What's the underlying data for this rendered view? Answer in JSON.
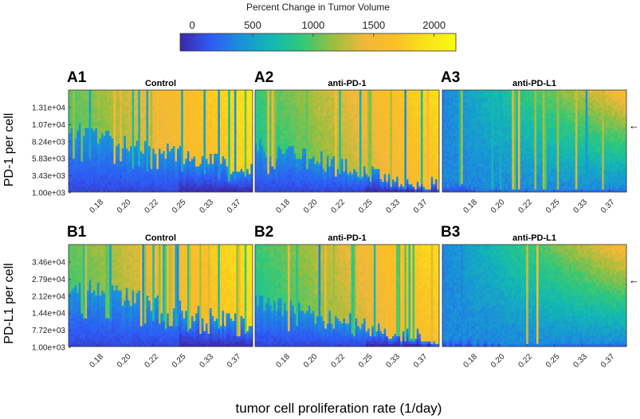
{
  "colorbar": {
    "title": "Percent Change in Tumor Volume",
    "ticks": [
      "0",
      "500",
      "1000",
      "1500",
      "2000"
    ],
    "tick_values": [
      0,
      500,
      1000,
      1500,
      2000
    ],
    "range": [
      -100,
      2180
    ],
    "colormap": "parula",
    "colormap_stops": [
      "#3e26a8",
      "#2e5cf6",
      "#1a92d9",
      "#13b9b1",
      "#32c878",
      "#9bbe3f",
      "#f0b83a",
      "#fbbf25",
      "#f9e218",
      "#f9fb0e"
    ]
  },
  "x_label": "tumor cell proliferation rate (1/day)",
  "rows": [
    {
      "y_label": "PD-1 per cell",
      "y_ticks": [
        "1.31e+04",
        "1.07e+04",
        "8.24e+03",
        "5.83e+03",
        "3.43e+03",
        "1.00e+03"
      ],
      "y_range": [
        1000,
        15000
      ]
    },
    {
      "y_label": "PD-L1 per cell",
      "y_ticks": [
        "3.46e+04",
        "2.79e+04",
        "2.12e+04",
        "1.44e+04",
        "7.72e+03",
        "1.00e+03"
      ],
      "y_range": [
        1000,
        42000
      ]
    }
  ],
  "x_ticks": [
    "0.18",
    "0.20",
    "0.22",
    "0.25",
    "0.33",
    "0.37"
  ],
  "arrow_glyph": "←",
  "chart_data": [
    {
      "type": "heatmap",
      "panel": "A1",
      "title": "Control",
      "ylabel": "PD-1 per cell",
      "xlabel": "tumor cell proliferation rate (1/day)",
      "row": 0,
      "boundary": 0.62,
      "base_high": 960,
      "extra_high": 0.2,
      "base_low": 60,
      "strip_prob": 0.55,
      "yticks": [
        "1.31e+04",
        "1.07e+04",
        "8.24e+03",
        "5.83e+03",
        "3.43e+03",
        "1.00e+03"
      ],
      "xticks": [
        "0.18",
        "0.20",
        "0.22",
        "0.25",
        "0.33",
        "0.37"
      ]
    },
    {
      "type": "heatmap",
      "panel": "A2",
      "title": "anti-PD-1",
      "ylabel": "PD-1 per cell",
      "xlabel": "tumor cell proliferation rate (1/day)",
      "row": 0,
      "boundary": 0.45,
      "base_high": 800,
      "extra_high": 0.3,
      "base_low": 60,
      "strip_prob": 0.5,
      "yticks": [
        "1.31e+04",
        "1.07e+04",
        "8.24e+03",
        "5.83e+03",
        "3.43e+03",
        "1.00e+03"
      ],
      "xticks": [
        "0.18",
        "0.20",
        "0.22",
        "0.25",
        "0.33",
        "0.37"
      ]
    },
    {
      "type": "heatmap",
      "panel": "A3",
      "title": "anti-PD-L1",
      "ylabel": "PD-1 per cell",
      "xlabel": "tumor cell proliferation rate (1/day)",
      "row": 0,
      "boundary": 0.1,
      "base_high": 350,
      "extra_high": 0.55,
      "base_low": 80,
      "strip_prob": 0.4,
      "arrow": true,
      "yticks": [
        "1.31e+04",
        "1.07e+04",
        "8.24e+03",
        "5.83e+03",
        "3.43e+03",
        "1.00e+03"
      ],
      "xticks": [
        "0.18",
        "0.20",
        "0.22",
        "0.25",
        "0.33",
        "0.37"
      ]
    },
    {
      "type": "heatmap",
      "panel": "B1",
      "title": "Control",
      "ylabel": "PD-L1 per cell",
      "xlabel": "tumor cell proliferation rate (1/day)",
      "row": 1,
      "boundary": 0.62,
      "base_high": 960,
      "extra_high": 0.2,
      "base_low": 60,
      "strip_prob": 0.55,
      "yticks": [
        "3.46e+04",
        "2.79e+04",
        "2.12e+04",
        "1.44e+04",
        "7.72e+03",
        "1.00e+03"
      ],
      "xticks": [
        "0.18",
        "0.20",
        "0.22",
        "0.25",
        "0.33",
        "0.37"
      ]
    },
    {
      "type": "heatmap",
      "panel": "B2",
      "title": "anti-PD-1",
      "ylabel": "PD-L1 per cell",
      "xlabel": "tumor cell proliferation rate (1/day)",
      "row": 1,
      "boundary": 0.45,
      "base_high": 800,
      "extra_high": 0.3,
      "base_low": 60,
      "strip_prob": 0.5,
      "yticks": [
        "3.46e+04",
        "2.79e+04",
        "2.12e+04",
        "1.44e+04",
        "7.72e+03",
        "1.00e+03"
      ],
      "xticks": [
        "0.18",
        "0.20",
        "0.22",
        "0.25",
        "0.33",
        "0.37"
      ]
    },
    {
      "type": "heatmap",
      "panel": "B3",
      "title": "anti-PD-L1",
      "ylabel": "PD-L1 per cell",
      "xlabel": "tumor cell proliferation rate (1/day)",
      "row": 1,
      "boundary": 0.1,
      "base_high": 350,
      "extra_high": 0.55,
      "base_low": 80,
      "strip_prob": 0.4,
      "arrow": true,
      "yticks": [
        "3.46e+04",
        "2.79e+04",
        "2.12e+04",
        "1.44e+04",
        "7.72e+03",
        "1.00e+03"
      ],
      "xticks": [
        "0.18",
        "0.20",
        "0.22",
        "0.25",
        "0.33",
        "0.37"
      ]
    }
  ]
}
